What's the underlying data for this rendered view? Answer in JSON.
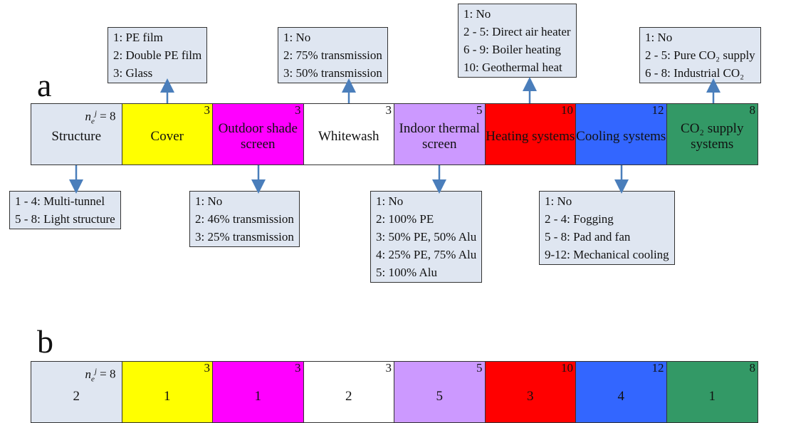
{
  "panel_a_label": "a",
  "panel_b_label": "b",
  "ne_label": "= 8",
  "row_a": [
    {
      "name": "Structure",
      "count": "",
      "color": "#dfe6f1",
      "textColor": "#111111"
    },
    {
      "name": "Cover",
      "count": "3",
      "color": "#ffff00",
      "textColor": "#111111"
    },
    {
      "name": "Outdoor shade screen",
      "count": "3",
      "color": "#ff00ff",
      "textColor": "#111111"
    },
    {
      "name": "Whitewash",
      "count": "3",
      "color": "#ffffff",
      "textColor": "#111111"
    },
    {
      "name": "Indoor thermal screen",
      "count": "5",
      "color": "#cc99ff",
      "textColor": "#111111"
    },
    {
      "name": "Heating systems",
      "count": "10",
      "color": "#ff0000",
      "textColor": "#111111"
    },
    {
      "name": "Cooling systems",
      "count": "12",
      "color": "#3366ff",
      "textColor": "#111111"
    },
    {
      "name": "CO₂ supply systems",
      "count": "8",
      "color": "#339966",
      "textColor": "#111111"
    }
  ],
  "row_b": [
    {
      "value": "2",
      "count": ""
    },
    {
      "value": "1",
      "count": "3"
    },
    {
      "value": "1",
      "count": "3"
    },
    {
      "value": "2",
      "count": "3"
    },
    {
      "value": "5",
      "count": "5"
    },
    {
      "value": "3",
      "count": "10"
    },
    {
      "value": "4",
      "count": "12"
    },
    {
      "value": "1",
      "count": "8"
    }
  ],
  "boxes": {
    "cover": [
      "1: PE film",
      "2: Double PE film",
      "3: Glass"
    ],
    "whitewash": [
      "1: No",
      "2: 75% transmission",
      "3: 50% transmission"
    ],
    "heating": [
      "1: No",
      "2 - 5: Direct air heater",
      "6 - 9: Boiler heating",
      "10: Geothermal heat"
    ],
    "co2": [
      "1: No",
      "2 - 5: Pure CO₂ supply",
      "6 - 8: Industrial CO₂"
    ],
    "structure": [
      "1 - 4: Multi-tunnel",
      "5 - 8: Light structure"
    ],
    "shade": [
      "1: No",
      "2: 46% transmission",
      "3: 25% transmission"
    ],
    "thermal": [
      "1: No",
      "2: 100% PE",
      "3: 50% PE, 50% Alu",
      "4: 25% PE, 75% Alu",
      "5: 100% Alu"
    ],
    "cooling": [
      "1: No",
      "2 - 4: Fogging",
      "5 - 8: Pad and fan",
      "9-12: Mechanical cooling"
    ]
  },
  "arrow_color": "#4a7ebb"
}
